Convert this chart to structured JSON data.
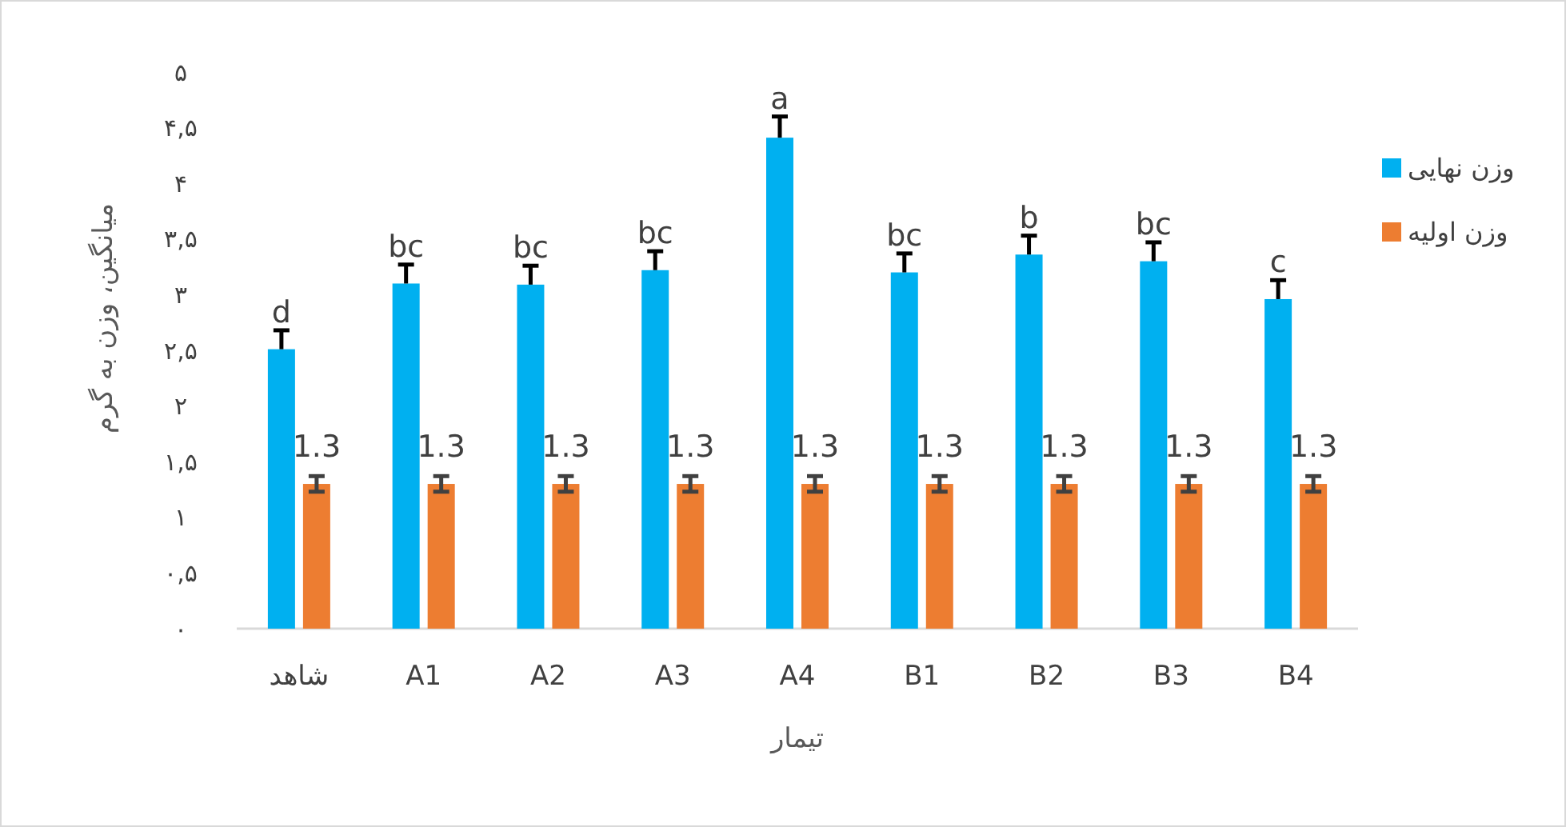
{
  "chart_data": {
    "type": "bar",
    "xlabel": "تیمار",
    "ylabel": "میانگین، وزن به گرم",
    "categories": [
      "شاهد",
      "A1",
      "A2",
      "A3",
      "A4",
      "B1",
      "B2",
      "B3",
      "B4"
    ],
    "series": [
      {
        "name": "وزن نهایی",
        "color": "#00b0f0",
        "values": [
          2.51,
          3.1,
          3.09,
          3.22,
          4.41,
          3.2,
          3.36,
          3.3,
          2.96
        ],
        "errors": [
          [
            2.51,
            2.68
          ],
          [
            3.1,
            3.27
          ],
          [
            3.09,
            3.26
          ],
          [
            3.22,
            3.39
          ],
          [
            4.41,
            4.6
          ],
          [
            3.2,
            3.37
          ],
          [
            3.36,
            3.53
          ],
          [
            3.3,
            3.47
          ],
          [
            2.96,
            3.13
          ]
        ]
      },
      {
        "name": "وزن اولیه",
        "color": "#ed7d31",
        "values": [
          1.3,
          1.3,
          1.3,
          1.3,
          1.3,
          1.3,
          1.3,
          1.3,
          1.3
        ],
        "errors": [
          0.07,
          0.07,
          0.07,
          0.07,
          0.07,
          0.07,
          0.07,
          0.07,
          0.07
        ],
        "value_labels": [
          "1.3",
          "1.3",
          "1.3",
          "1.3",
          "1.3",
          "1.3",
          "1.3",
          "1.3",
          "1.3"
        ]
      }
    ],
    "ylim": [
      0,
      5
    ],
    "yticks": [
      {
        "value": 0,
        "label": "۰"
      },
      {
        "value": 0.5,
        "label": "۰,۵"
      },
      {
        "value": 1,
        "label": "۱"
      },
      {
        "value": 1.5,
        "label": "۱,۵"
      },
      {
        "value": 2,
        "label": "۲"
      },
      {
        "value": 2.5,
        "label": "۲,۵"
      },
      {
        "value": 3,
        "label": "۳"
      },
      {
        "value": 3.5,
        "label": "۳,۵"
      },
      {
        "value": 4,
        "label": "۴"
      },
      {
        "value": 4.5,
        "label": "۴,۵"
      },
      {
        "value": 5,
        "label": "۵"
      }
    ],
    "annotations": [
      "d",
      "bc",
      "bc",
      "bc",
      "a",
      "bc",
      "b",
      "bc",
      "c"
    ],
    "legend": "right"
  }
}
